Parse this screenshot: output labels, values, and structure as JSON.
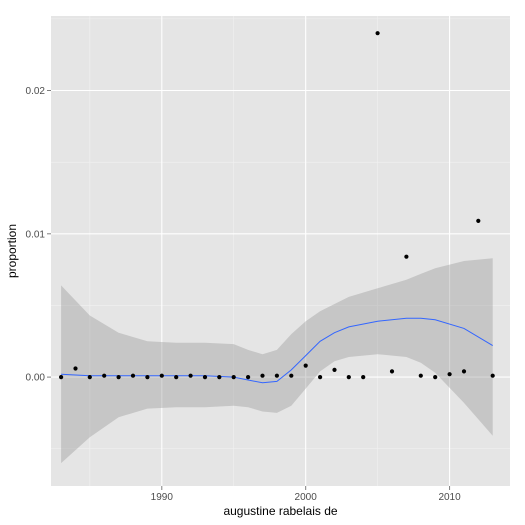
{
  "chart_data": {
    "type": "scatter",
    "title": "",
    "xlabel": "augustine rabelais de",
    "ylabel": "proportion",
    "xlim": [
      1982.3,
      2014.2
    ],
    "ylim": [
      -0.0076,
      0.0252
    ],
    "x_ticks": [
      1990,
      2000,
      2010
    ],
    "x_tick_labels": [
      "1990",
      "2000",
      "2010"
    ],
    "y_ticks": [
      0.0,
      0.01,
      0.02
    ],
    "y_tick_labels": [
      "0.00",
      "0.01",
      "0.02"
    ],
    "grid": true,
    "legend": "none",
    "colors": {
      "panel": "#e5e5e5",
      "grid_major": "#ffffff",
      "grid_minor": "#f2f2f2",
      "points": "#000000",
      "smooth_line": "#3366ff",
      "ribbon": "#999999"
    },
    "series": [
      {
        "values": [
          {
            "x": 1983,
            "y": 0.0
          },
          {
            "x": 1984,
            "y": 0.0006
          },
          {
            "x": 1985,
            "y": 0.0
          },
          {
            "x": 1986,
            "y": 0.0001
          },
          {
            "x": 1987,
            "y": 0.0
          },
          {
            "x": 1988,
            "y": 0.0001
          },
          {
            "x": 1989,
            "y": 0.0
          },
          {
            "x": 1990,
            "y": 0.0001
          },
          {
            "x": 1991,
            "y": 0.0
          },
          {
            "x": 1992,
            "y": 0.0001
          },
          {
            "x": 1993,
            "y": 0.0
          },
          {
            "x": 1994,
            "y": 0.0
          },
          {
            "x": 1995,
            "y": 0.0
          },
          {
            "x": 1996,
            "y": 0.0
          },
          {
            "x": 1997,
            "y": 0.0001
          },
          {
            "x": 1998,
            "y": 0.0001
          },
          {
            "x": 1999,
            "y": 0.0001
          },
          {
            "x": 2000,
            "y": 0.0008
          },
          {
            "x": 2001,
            "y": 0.0
          },
          {
            "x": 2002,
            "y": 0.0005
          },
          {
            "x": 2003,
            "y": 0.0
          },
          {
            "x": 2004,
            "y": 0.0
          },
          {
            "x": 2005,
            "y": 0.024
          },
          {
            "x": 2006,
            "y": 0.0004
          },
          {
            "x": 2007,
            "y": 0.0084
          },
          {
            "x": 2008,
            "y": 0.0001
          },
          {
            "x": 2009,
            "y": 0.0
          },
          {
            "x": 2010,
            "y": 0.0002
          },
          {
            "x": 2011,
            "y": 0.0004
          },
          {
            "x": 2012,
            "y": 0.0109
          },
          {
            "x": 2013,
            "y": 0.0001
          }
        ]
      }
    ],
    "smooth": {
      "x": [
        1983,
        1985,
        1987,
        1989,
        1991,
        1993,
        1995,
        1996,
        1997,
        1998,
        1999,
        2000,
        2001,
        2002,
        2003,
        2005,
        2007,
        2008,
        2009,
        2011,
        2013
      ],
      "fit": [
        0.0002,
        0.0001,
        0.0001,
        0.0001,
        0.0001,
        0.0001,
        0.0,
        -0.0002,
        -0.0004,
        -0.0003,
        0.0005,
        0.0015,
        0.0025,
        0.0031,
        0.0035,
        0.0039,
        0.0041,
        0.0041,
        0.004,
        0.0034,
        0.0022
      ],
      "lower": [
        -0.006,
        -0.0042,
        -0.0028,
        -0.0022,
        -0.0021,
        -0.0021,
        -0.002,
        -0.0021,
        -0.0024,
        -0.0025,
        -0.002,
        -0.0008,
        0.0004,
        0.0011,
        0.0014,
        0.0016,
        0.0014,
        0.001,
        0.0003,
        -0.0018,
        -0.0041
      ],
      "upper": [
        0.0064,
        0.0043,
        0.0031,
        0.0025,
        0.0024,
        0.0024,
        0.0023,
        0.0019,
        0.0016,
        0.0019,
        0.003,
        0.0039,
        0.0046,
        0.0051,
        0.0056,
        0.0062,
        0.0068,
        0.0072,
        0.0076,
        0.0081,
        0.0083
      ]
    }
  }
}
